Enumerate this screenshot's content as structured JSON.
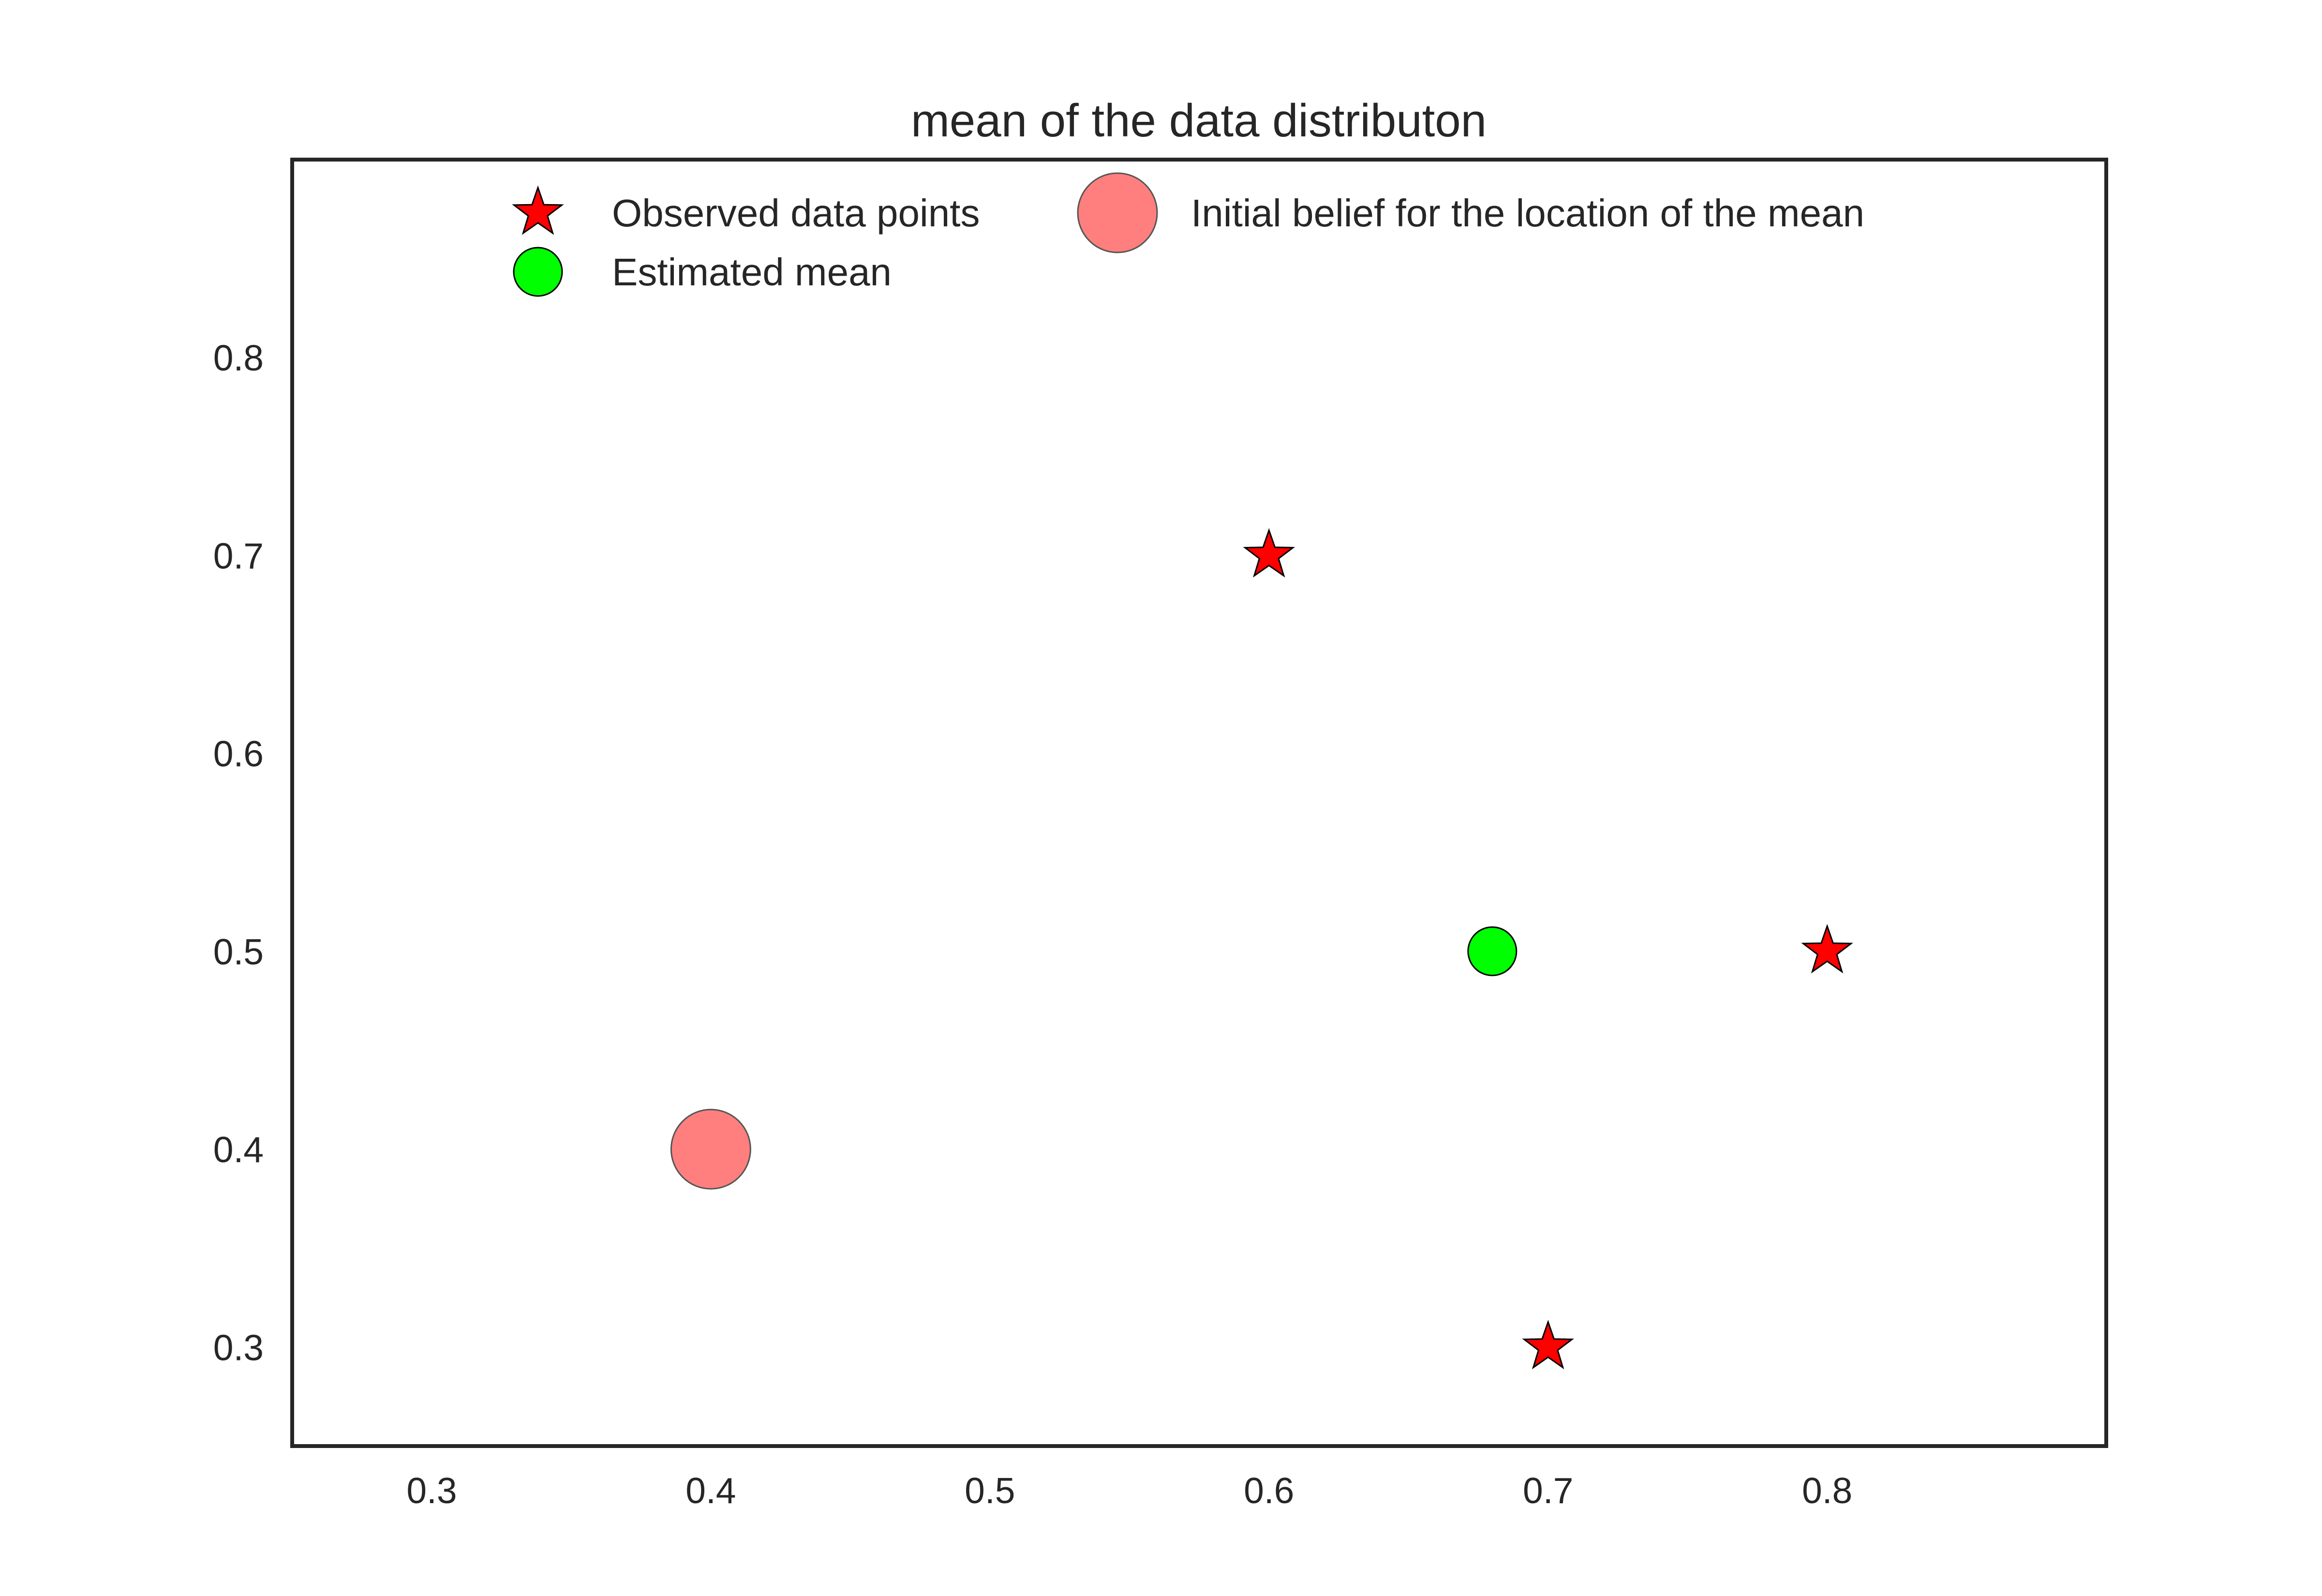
{
  "chart_data": {
    "type": "scatter",
    "title": "mean of the data distributon",
    "xlabel": "",
    "ylabel": "",
    "xlim": [
      0.25,
      0.9
    ],
    "ylim": [
      0.25,
      0.9
    ],
    "xticks": [
      "0.3",
      "0.4",
      "0.5",
      "0.6",
      "0.7",
      "0.8"
    ],
    "yticks": [
      "0.3",
      "0.4",
      "0.5",
      "0.6",
      "0.7",
      "0.8"
    ],
    "grid": false,
    "legend_position": "top",
    "series": [
      {
        "name": "Observed data points",
        "marker": "star",
        "color": "#ff0000",
        "points": [
          {
            "x": 0.6,
            "y": 0.7
          },
          {
            "x": 0.8,
            "y": 0.5
          },
          {
            "x": 0.7,
            "y": 0.3
          }
        ]
      },
      {
        "name": "Initial belief for the location of the mean",
        "marker": "circle-large",
        "color": "#ff7f7f",
        "points": [
          {
            "x": 0.4,
            "y": 0.4
          }
        ]
      },
      {
        "name": "Estimated mean",
        "marker": "circle",
        "color": "#00ff00",
        "points": [
          {
            "x": 0.68,
            "y": 0.5
          }
        ]
      }
    ]
  }
}
